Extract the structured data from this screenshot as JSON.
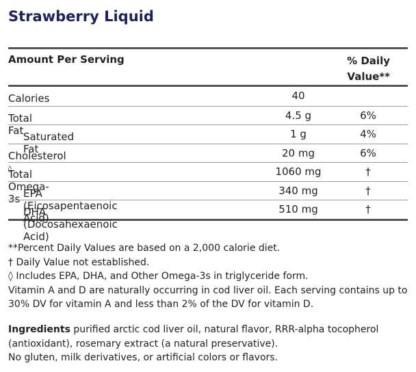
{
  "title": "Strawberry Liquid",
  "table": {
    "header": {
      "amount": "Amount Per Serving",
      "daily_value": "% Daily Value**"
    },
    "rows": [
      {
        "name": "Calories",
        "amount": "40",
        "indent": false
      },
      {
        "name": "Total Fat",
        "amount": "4.5 g",
        "daily_value": "6%",
        "indent": false
      },
      {
        "name": "Saturated Fat",
        "amount": "1 g",
        "daily_value": "4%",
        "indent": true
      },
      {
        "name": "Cholesterol",
        "amount": "20 mg",
        "daily_value": "6%",
        "indent": false
      },
      {
        "name": "Total Omega-3s",
        "note_mark": "◊",
        "amount": "1060 mg",
        "daily_value": "†",
        "indent": false
      },
      {
        "name": "EPA (Eicosapentaenoic Acid)",
        "amount": "340 mg",
        "daily_value": "†",
        "indent": true
      },
      {
        "name": "DHA (Docosahexaenoic Acid)",
        "amount": "510 mg",
        "daily_value": "†",
        "indent": true
      }
    ]
  },
  "footnotes": [
    "**Percent Daily Values are based on a 2,000 calorie diet.",
    "† Daily Value not established.",
    "◊ Includes EPA, DHA, and Other Omega-3s in triglyceride form.",
    "Vitamin A and D are naturally occurring in cod liver oil. Each serving contains up to 30% DV for vitamin A and less than 2% of the DV for vitamin D."
  ],
  "ingredients": {
    "label": "Ingredients",
    "text": "purified arctic cod liver oil, natural flavor, RRR-alpha tocopherol (antioxidant), rosemary extract (a natural preservative).",
    "note": "No gluten, milk derivatives, or artificial colors or flavors."
  }
}
